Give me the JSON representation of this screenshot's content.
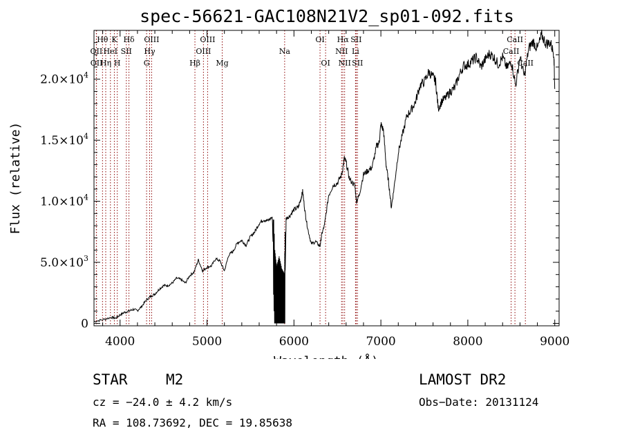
{
  "chart_data": {
    "type": "line",
    "title": "spec-56621-GAC108N21V2_sp01-092.fits",
    "xlabel": "Wavelength (Å)",
    "ylabel": "Flux (relative)",
    "xlim": [
      3700,
      9050
    ],
    "ylim": [
      -200,
      24000
    ],
    "x_ticks": [
      {
        "value": 4000,
        "label": "4000"
      },
      {
        "value": 5000,
        "label": "5000"
      },
      {
        "value": 6000,
        "label": "6000"
      },
      {
        "value": 7000,
        "label": "7000"
      },
      {
        "value": 8000,
        "label": "8000"
      },
      {
        "value": 9000,
        "label": "9000"
      }
    ],
    "y_ticks": [
      {
        "value": 0,
        "mantissa": "0",
        "exp": ""
      },
      {
        "value": 5000,
        "mantissa": "5.0×10",
        "exp": "3"
      },
      {
        "value": 10000,
        "mantissa": "1.0×10",
        "exp": "4"
      },
      {
        "value": 15000,
        "mantissa": "1.5×10",
        "exp": "4"
      },
      {
        "value": 20000,
        "mantissa": "2.0×10",
        "exp": "4"
      }
    ],
    "grid": false,
    "series": [
      {
        "points": [
          [
            3700,
            150
          ],
          [
            3800,
            300
          ],
          [
            3900,
            500
          ],
          [
            3950,
            420
          ],
          [
            4000,
            700
          ],
          [
            4050,
            900
          ],
          [
            4100,
            1000
          ],
          [
            4150,
            1150
          ],
          [
            4200,
            1050
          ],
          [
            4250,
            1400
          ],
          [
            4300,
            1900
          ],
          [
            4350,
            2200
          ],
          [
            4400,
            2400
          ],
          [
            4450,
            2800
          ],
          [
            4500,
            3100
          ],
          [
            4550,
            3100
          ],
          [
            4600,
            3300
          ],
          [
            4650,
            3700
          ],
          [
            4700,
            3600
          ],
          [
            4750,
            3300
          ],
          [
            4800,
            3900
          ],
          [
            4850,
            4200
          ],
          [
            4900,
            5200
          ],
          [
            4950,
            4300
          ],
          [
            5000,
            4600
          ],
          [
            5050,
            4700
          ],
          [
            5100,
            5300
          ],
          [
            5150,
            5100
          ],
          [
            5200,
            4300
          ],
          [
            5250,
            5600
          ],
          [
            5300,
            5900
          ],
          [
            5350,
            6600
          ],
          [
            5400,
            6800
          ],
          [
            5450,
            6400
          ],
          [
            5500,
            7100
          ],
          [
            5550,
            7500
          ],
          [
            5600,
            8200
          ],
          [
            5650,
            8500
          ],
          [
            5700,
            8400
          ],
          [
            5750,
            8700
          ],
          [
            5780,
            2000
          ],
          [
            5800,
            700
          ],
          [
            5830,
            1500
          ],
          [
            5860,
            500
          ],
          [
            5890,
            100
          ],
          [
            5910,
            8600
          ],
          [
            5950,
            8800
          ],
          [
            6000,
            9300
          ],
          [
            6050,
            9500
          ],
          [
            6080,
            10200
          ],
          [
            6100,
            10800
          ],
          [
            6130,
            9000
          ],
          [
            6160,
            7700
          ],
          [
            6200,
            6500
          ],
          [
            6250,
            6700
          ],
          [
            6300,
            6300
          ],
          [
            6320,
            7300
          ],
          [
            6350,
            8000
          ],
          [
            6400,
            10500
          ],
          [
            6450,
            11300
          ],
          [
            6500,
            11500
          ],
          [
            6550,
            12200
          ],
          [
            6580,
            13500
          ],
          [
            6600,
            13200
          ],
          [
            6640,
            11800
          ],
          [
            6700,
            11300
          ],
          [
            6720,
            10000
          ],
          [
            6750,
            10500
          ],
          [
            6800,
            12200
          ],
          [
            6850,
            12500
          ],
          [
            6900,
            12800
          ],
          [
            6950,
            14500
          ],
          [
            6980,
            14800
          ],
          [
            7000,
            16300
          ],
          [
            7030,
            15800
          ],
          [
            7060,
            13000
          ],
          [
            7090,
            11500
          ],
          [
            7120,
            9500
          ],
          [
            7150,
            11000
          ],
          [
            7200,
            14000
          ],
          [
            7250,
            15500
          ],
          [
            7300,
            17000
          ],
          [
            7350,
            17500
          ],
          [
            7400,
            18200
          ],
          [
            7450,
            19500
          ],
          [
            7500,
            19800
          ],
          [
            7550,
            20600
          ],
          [
            7600,
            20200
          ],
          [
            7630,
            19800
          ],
          [
            7660,
            17600
          ],
          [
            7700,
            18200
          ],
          [
            7750,
            18500
          ],
          [
            7800,
            19000
          ],
          [
            7850,
            19300
          ],
          [
            7900,
            20300
          ],
          [
            7950,
            21100
          ],
          [
            8000,
            21200
          ],
          [
            8050,
            21500
          ],
          [
            8100,
            21800
          ],
          [
            8150,
            21000
          ],
          [
            8200,
            21600
          ],
          [
            8250,
            22100
          ],
          [
            8300,
            21800
          ],
          [
            8350,
            21200
          ],
          [
            8400,
            21800
          ],
          [
            8450,
            20900
          ],
          [
            8500,
            21500
          ],
          [
            8550,
            19500
          ],
          [
            8600,
            21800
          ],
          [
            8650,
            20200
          ],
          [
            8700,
            22500
          ],
          [
            8750,
            23100
          ],
          [
            8800,
            22500
          ],
          [
            8850,
            23600
          ],
          [
            8900,
            22900
          ],
          [
            8950,
            23000
          ],
          [
            8990,
            22100
          ],
          [
            9000,
            19200
          ]
        ]
      }
    ],
    "lines": [
      {
        "label": "Hθ",
        "x": 3798,
        "row": 0
      },
      {
        "label": "K",
        "x": 3934,
        "row": 0
      },
      {
        "label": "Hδ",
        "x": 4102,
        "row": 0
      },
      {
        "label": "OIII",
        "x": 4363,
        "row": 0
      },
      {
        "label": "OIII",
        "x": 5007,
        "row": 0
      },
      {
        "label": "OI",
        "x": 6300,
        "row": 0
      },
      {
        "label": "Hα",
        "x": 6563,
        "row": 0
      },
      {
        "label": "SII",
        "x": 6716,
        "row": 0
      },
      {
        "label": "CaII",
        "x": 8542,
        "row": 0
      },
      {
        "label": "OII",
        "x": 3727,
        "row": 1
      },
      {
        "label": "HeI",
        "x": 3889,
        "row": 1
      },
      {
        "label": "SII",
        "x": 4072,
        "row": 1
      },
      {
        "label": "Hγ",
        "x": 4340,
        "row": 1
      },
      {
        "label": "OIII",
        "x": 4959,
        "row": 1
      },
      {
        "label": "Na",
        "x": 5893,
        "row": 1
      },
      {
        "label": "NII",
        "x": 6548,
        "row": 1
      },
      {
        "label": "Li",
        "x": 6708,
        "row": 1
      },
      {
        "label": "CaII",
        "x": 8498,
        "row": 1
      },
      {
        "label": "OII",
        "x": 3729,
        "row": 2
      },
      {
        "label": "Hη",
        "x": 3835,
        "row": 2
      },
      {
        "label": "H",
        "x": 3968,
        "row": 2
      },
      {
        "label": "G",
        "x": 4305,
        "row": 2
      },
      {
        "label": "Hβ",
        "x": 4861,
        "row": 2
      },
      {
        "label": "Mg",
        "x": 5175,
        "row": 2
      },
      {
        "label": "OI",
        "x": 6364,
        "row": 2
      },
      {
        "label": "NII",
        "x": 6583,
        "row": 2
      },
      {
        "label": "SII",
        "x": 6731,
        "row": 2
      },
      {
        "label": "CaII",
        "x": 8662,
        "row": 2
      }
    ],
    "line_color": "#8b0000",
    "series_color": "#000000"
  },
  "info": {
    "object_class": "STAR",
    "subclass": "M2",
    "survey": "LAMOST DR2",
    "cz": "cz = −24.0 ± 4.2 km/s",
    "obs_date": "Obs−Date: 20131124",
    "coords": "RA = 108.73692, DEC =  19.85638"
  }
}
